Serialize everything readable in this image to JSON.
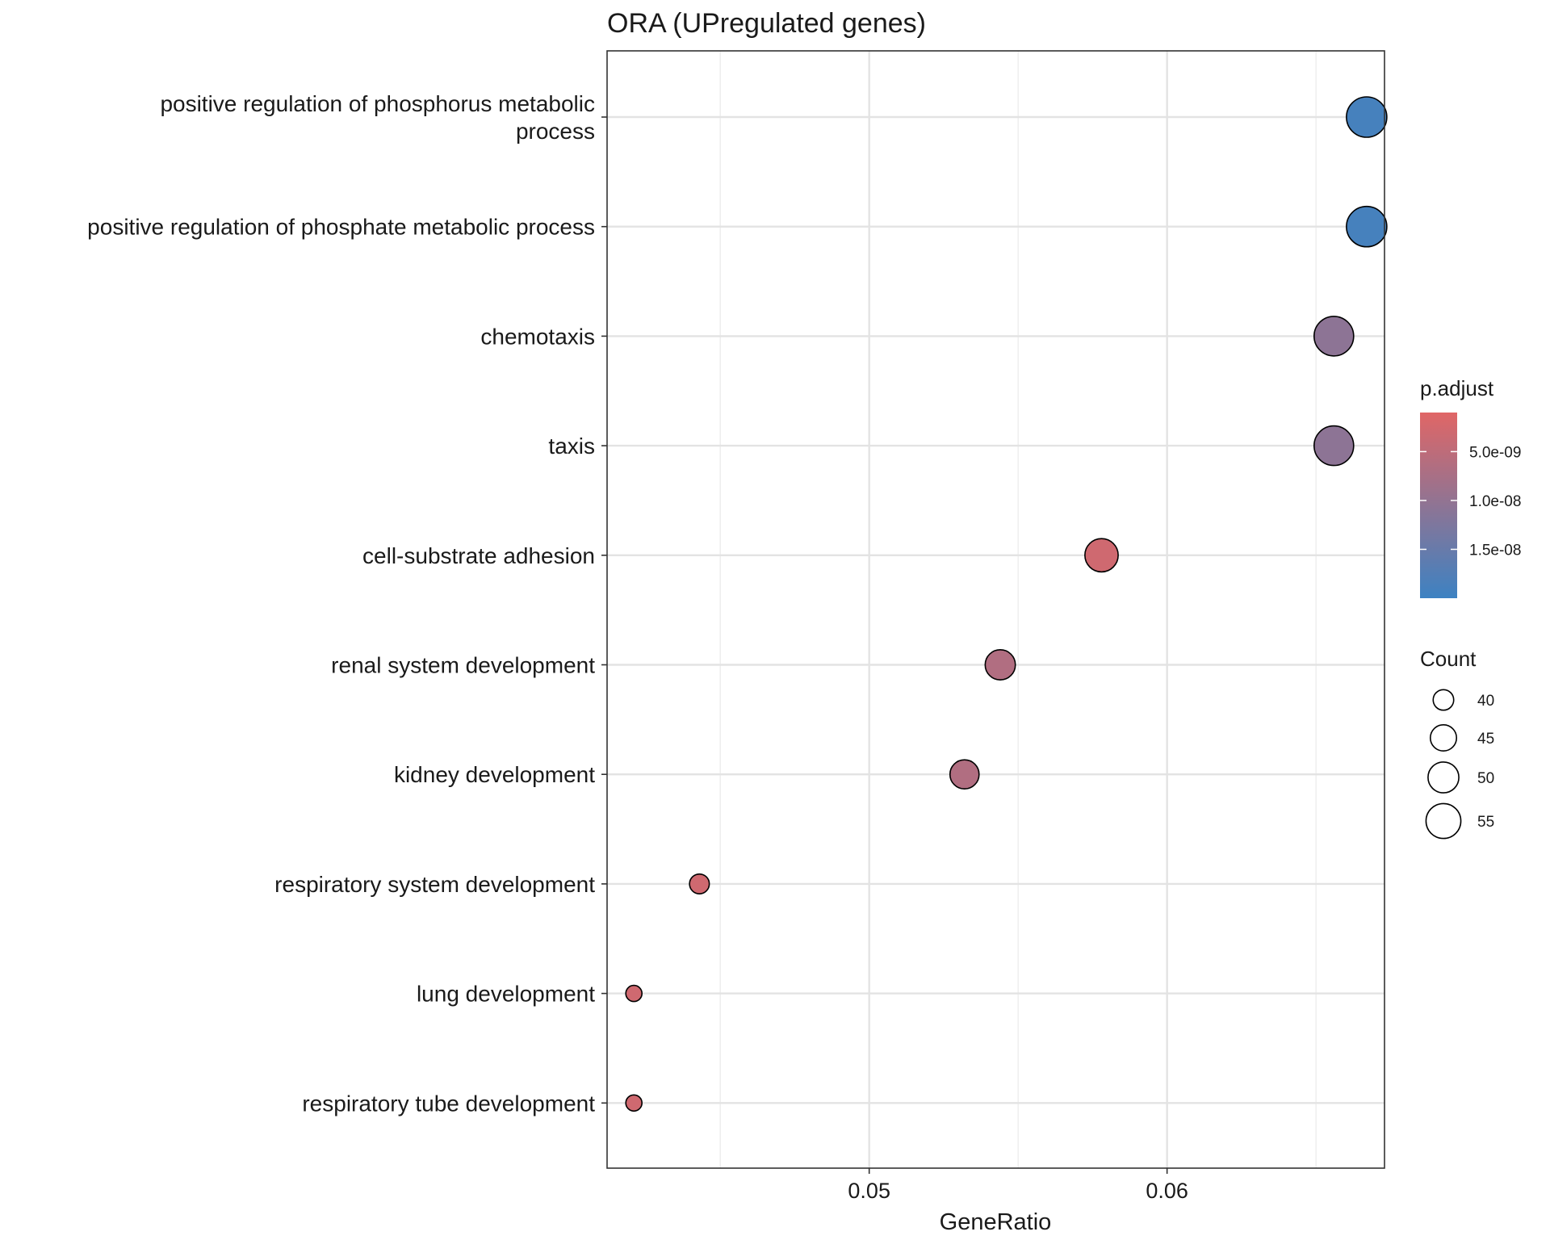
{
  "chart_data": {
    "type": "scatter",
    "title": "ORA (UPregulated genes)",
    "xlabel": "GeneRatio",
    "ylabel": "",
    "xlim": [
      0.0412,
      0.0673
    ],
    "x_ticks": [
      {
        "value": 0.05,
        "label": "0.05"
      },
      {
        "value": 0.06,
        "label": "0.06"
      }
    ],
    "x_minor_gridlines": [
      0.045,
      0.055,
      0.065
    ],
    "points": [
      {
        "label": [
          "positive regulation of phosphorus metabolic",
          "process"
        ],
        "gene_ratio": 0.0667,
        "count": 57,
        "p_adjust": 1.9e-08
      },
      {
        "label": [
          "positive regulation of phosphate metabolic process"
        ],
        "gene_ratio": 0.0667,
        "count": 57,
        "p_adjust": 1.9e-08
      },
      {
        "label": [
          "chemotaxis"
        ],
        "gene_ratio": 0.0656,
        "count": 56,
        "p_adjust": 1.07e-08
      },
      {
        "label": [
          "taxis"
        ],
        "gene_ratio": 0.0656,
        "count": 56,
        "p_adjust": 1.07e-08
      },
      {
        "label": [
          "cell-substrate adhesion"
        ],
        "gene_ratio": 0.0578,
        "count": 49,
        "p_adjust": 3e-09
      },
      {
        "label": [
          "renal system development"
        ],
        "gene_ratio": 0.0544,
        "count": 46,
        "p_adjust": 6.5e-09
      },
      {
        "label": [
          "kidney development"
        ],
        "gene_ratio": 0.0532,
        "count": 45,
        "p_adjust": 6.5e-09
      },
      {
        "label": [
          "respiratory system development"
        ],
        "gene_ratio": 0.0443,
        "count": 38,
        "p_adjust": 3e-09
      },
      {
        "label": [
          "lung development"
        ],
        "gene_ratio": 0.0421,
        "count": 36,
        "p_adjust": 3e-09
      },
      {
        "label": [
          "respiratory tube development"
        ],
        "gene_ratio": 0.0421,
        "count": 36,
        "p_adjust": 3e-09
      }
    ],
    "color_legend": {
      "title": "p.adjust",
      "low_color": "#e06666",
      "high_color": "#3d82c2",
      "range": [
        1e-09,
        2e-08
      ],
      "ticks": [
        {
          "value": 5e-09,
          "label": "5.0e-09"
        },
        {
          "value": 1e-08,
          "label": "1.0e-08"
        },
        {
          "value": 1.5e-08,
          "label": "1.5e-08"
        }
      ]
    },
    "size_legend": {
      "title": "Count",
      "range": [
        36,
        57
      ],
      "entries": [
        {
          "value": 40,
          "label": "40"
        },
        {
          "value": 45,
          "label": "45"
        },
        {
          "value": 50,
          "label": "50"
        },
        {
          "value": 55,
          "label": "55"
        }
      ]
    },
    "grid": true,
    "legend_position": "right"
  }
}
